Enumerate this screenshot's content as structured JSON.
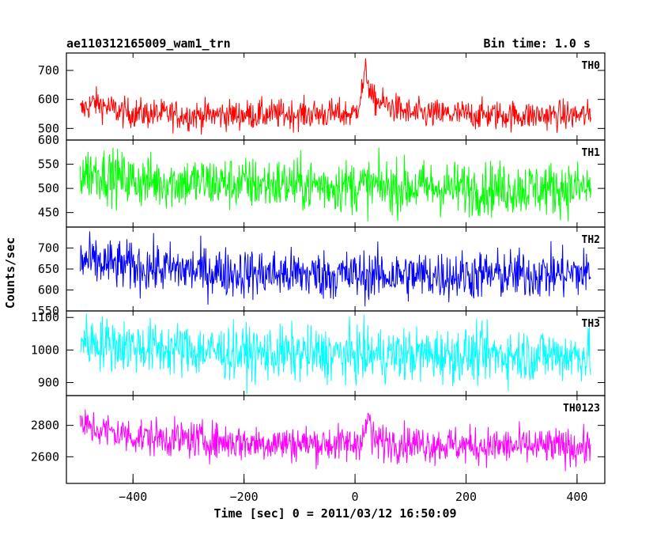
{
  "chart_data": {
    "type": "line",
    "title": "ae110312165009_wam1_trn",
    "subtitle": "Bin time: 1.0 s",
    "xlabel": "Time [sec] 0 = 2011/03/12 16:50:09",
    "ylabel": "Counts/sec",
    "xlim": [
      -520,
      450
    ],
    "x_ticks": [
      -400,
      -200,
      0,
      200,
      400
    ],
    "x_range": [
      -495,
      425
    ],
    "legend": "none",
    "grid": false,
    "panels": [
      {
        "name": "TH0",
        "color": "#ff0000",
        "ylim": [
          460,
          760
        ],
        "y_ticks": [
          500,
          600,
          700
        ],
        "series": [
          {
            "name": "TH0",
            "x": [
              -495,
              -470,
              -420,
              -300,
              -100,
              0,
              10,
              20,
              30,
              100,
              300,
              425
            ],
            "values": [
              560,
              590,
              555,
              545,
              550,
              550,
              610,
              700,
              600,
              550,
              545,
              545
            ]
          }
        ]
      },
      {
        "name": "TH1",
        "color": "#00ff00",
        "ylim": [
          420,
          600
        ],
        "y_ticks": [
          450,
          500,
          550,
          600
        ],
        "series": [
          {
            "name": "TH1",
            "x": [
              -495,
              -470,
              -400,
              -200,
              0,
              200,
              425
            ],
            "values": [
              530,
              535,
              515,
              510,
              505,
              500,
              500
            ]
          }
        ]
      },
      {
        "name": "TH2",
        "color": "#0000ff",
        "ylim": [
          550,
          750
        ],
        "y_ticks": [
          550,
          600,
          650,
          700
        ],
        "series": [
          {
            "name": "TH2",
            "x": [
              -495,
              -470,
              -400,
              -200,
              0,
              200,
              425
            ],
            "values": [
              670,
              665,
              655,
              640,
              635,
              635,
              640
            ]
          }
        ]
      },
      {
        "name": "TH3",
        "color": "#00ffff",
        "ylim": [
          860,
          1120
        ],
        "y_ticks": [
          900,
          1000,
          1100
        ],
        "series": [
          {
            "name": "TH3",
            "x": [
              -495,
              -470,
              -400,
              -200,
              0,
              200,
              425
            ],
            "values": [
              1030,
              1025,
              1010,
              990,
              985,
              985,
              985
            ]
          }
        ]
      },
      {
        "name": "TH0123",
        "color": "#ff00ff",
        "ylim": [
          2430,
          2990
        ],
        "y_ticks": [
          2600,
          2800
        ],
        "series": [
          {
            "name": "TH0123",
            "x": [
              -495,
              -470,
              -400,
              -200,
              0,
              20,
              25,
              30,
              200,
              425
            ],
            "values": [
              2800,
              2780,
              2730,
              2690,
              2680,
              2760,
              2900,
              2700,
              2670,
              2660
            ]
          }
        ]
      }
    ]
  }
}
